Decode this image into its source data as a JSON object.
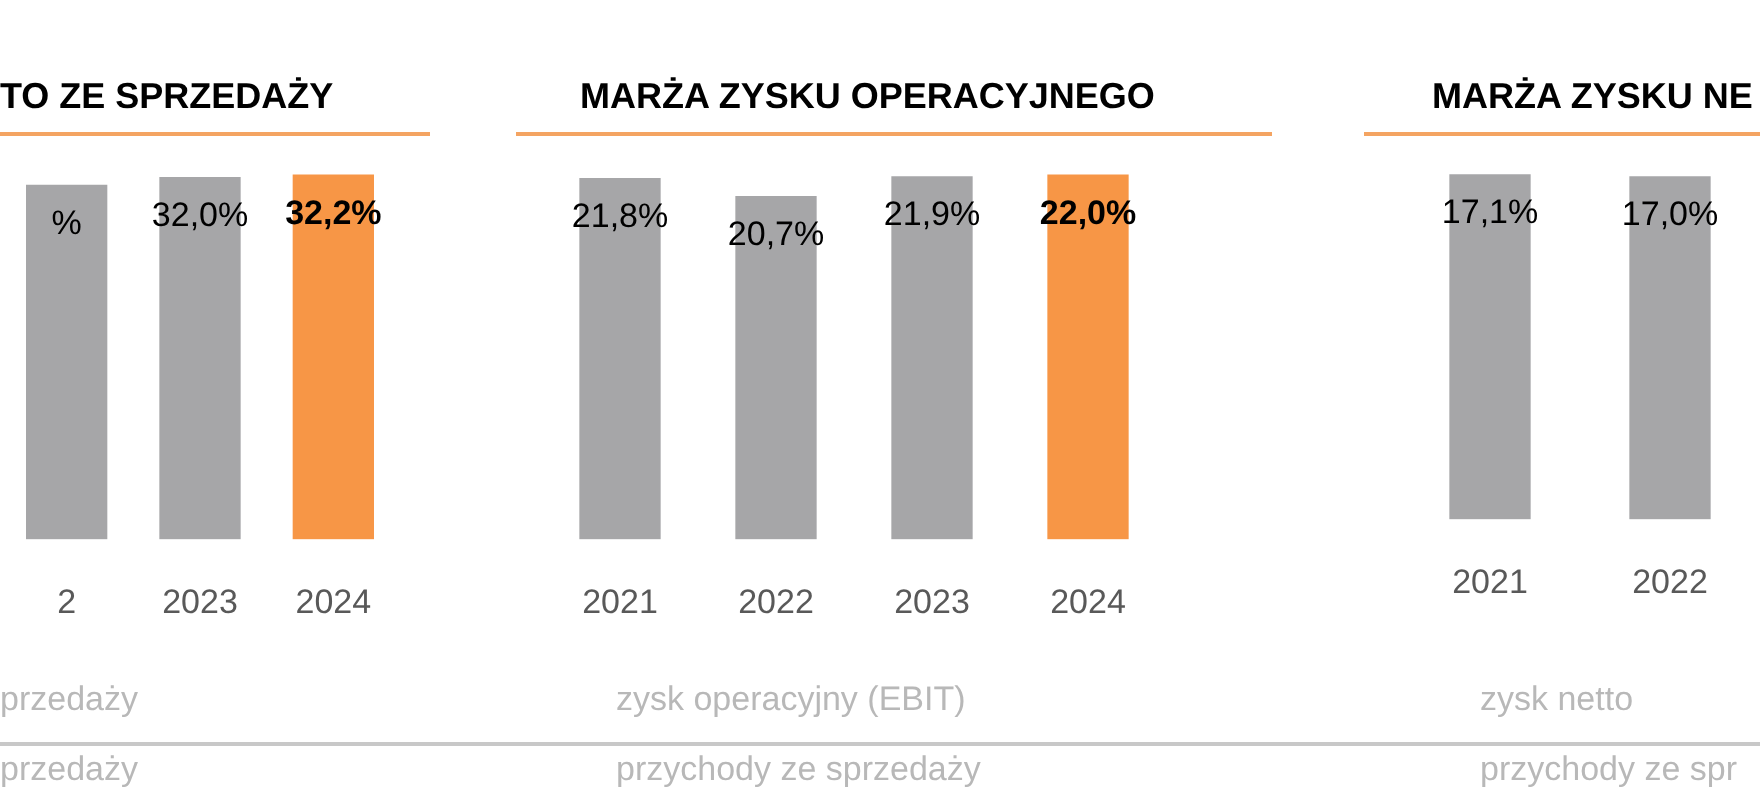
{
  "chart_data": [
    {
      "type": "bar",
      "title": "TO ZE SPRZEDAŻY",
      "categories": [
        "2",
        "2023",
        "2024"
      ],
      "values": [
        31.3,
        32.0,
        32.2
      ],
      "colors": [
        "#a6a6a8",
        "#a6a6a8",
        "#f79646"
      ],
      "value_labels": [
        "%",
        "32,0%",
        "32,2%"
      ],
      "annotations": [
        "przedaży",
        "przedaży"
      ]
    },
    {
      "type": "bar",
      "title": "MARŻA ZYSKU OPERACYJNEGO",
      "categories": [
        "2021",
        "2022",
        "2023",
        "2024"
      ],
      "values": [
        21.8,
        20.7,
        21.9,
        22.0
      ],
      "colors": [
        "#a6a6a8",
        "#a6a6a8",
        "#a6a6a8",
        "#f79646"
      ],
      "value_labels": [
        "21,8%",
        "20,7%",
        "21,9%",
        "22,0%"
      ],
      "annotations": [
        "zysk operacyjny (EBIT)",
        "przychody ze sprzedaży"
      ]
    },
    {
      "type": "bar",
      "title": "MARŻA ZYSKU NE",
      "categories": [
        "2021",
        "2022"
      ],
      "values": [
        17.1,
        17.0
      ],
      "colors": [
        "#a6a6a8",
        "#a6a6a8"
      ],
      "value_labels": [
        "17,1%",
        "17,0%"
      ],
      "annotations": [
        "zysk netto",
        "przychody ze spr"
      ]
    }
  ]
}
